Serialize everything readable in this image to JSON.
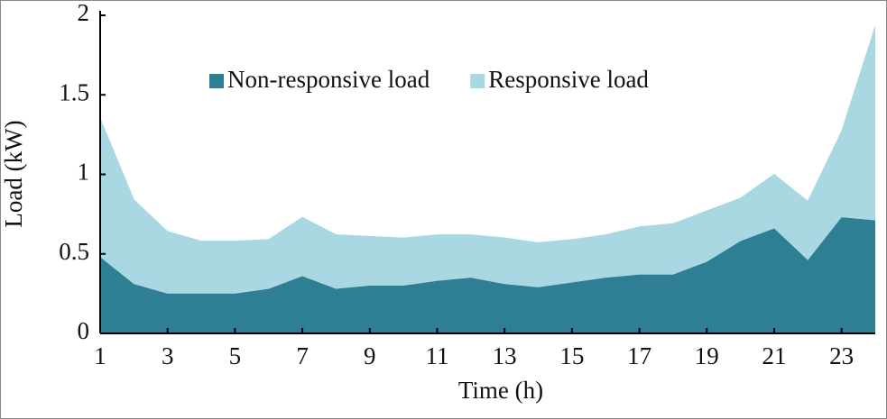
{
  "chart_data": {
    "type": "stacked-area",
    "x_label": "Time (h)",
    "y_label": "Load (kW)",
    "x": [
      1,
      2,
      3,
      4,
      5,
      6,
      7,
      8,
      9,
      10,
      11,
      12,
      13,
      14,
      15,
      16,
      17,
      18,
      19,
      20,
      21,
      22,
      23,
      24
    ],
    "series": [
      {
        "name": "Non-responsive load",
        "color": "#2e7f93",
        "values": [
          0.48,
          0.31,
          0.25,
          0.25,
          0.25,
          0.28,
          0.36,
          0.28,
          0.3,
          0.3,
          0.33,
          0.35,
          0.31,
          0.29,
          0.32,
          0.35,
          0.37,
          0.37,
          0.45,
          0.58,
          0.66,
          0.46,
          0.73,
          0.71
        ]
      },
      {
        "name": "Responsive load",
        "color": "#a9d8e2",
        "values": [
          0.87,
          0.53,
          0.39,
          0.33,
          0.33,
          0.31,
          0.37,
          0.34,
          0.31,
          0.3,
          0.29,
          0.27,
          0.29,
          0.28,
          0.27,
          0.27,
          0.3,
          0.32,
          0.32,
          0.27,
          0.34,
          0.37,
          0.54,
          1.22
        ]
      }
    ],
    "xlim": [
      1,
      24
    ],
    "xticks": [
      1,
      3,
      5,
      7,
      9,
      11,
      13,
      15,
      17,
      19,
      21,
      23
    ],
    "ylim": [
      0,
      2
    ],
    "yticks": [
      0,
      0.5,
      1,
      1.5,
      2
    ],
    "legend": "top"
  }
}
